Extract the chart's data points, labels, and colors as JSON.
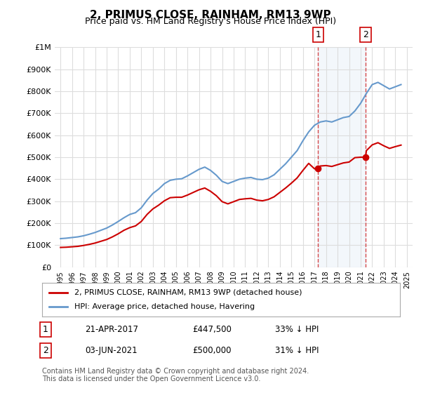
{
  "title": "2, PRIMUS CLOSE, RAINHAM, RM13 9WP",
  "subtitle": "Price paid vs. HM Land Registry's House Price Index (HPI)",
  "ylabel": "",
  "xlabel": "",
  "ylim": [
    0,
    1000000
  ],
  "yticks": [
    0,
    100000,
    200000,
    300000,
    400000,
    500000,
    600000,
    700000,
    800000,
    900000,
    1000000
  ],
  "ytick_labels": [
    "£0",
    "£100K",
    "£200K",
    "£300K",
    "£400K",
    "£500K",
    "£600K",
    "£700K",
    "£800K",
    "£900K",
    "£1M"
  ],
  "hpi_color": "#6699cc",
  "price_color": "#cc0000",
  "marker1_date": 2017.31,
  "marker1_label": "1",
  "marker2_date": 2021.42,
  "marker2_label": "2",
  "marker1_price": 447500,
  "marker2_price": 500000,
  "legend_line1": "2, PRIMUS CLOSE, RAINHAM, RM13 9WP (detached house)",
  "legend_line2": "HPI: Average price, detached house, Havering",
  "table_row1": [
    "1",
    "21-APR-2017",
    "£447,500",
    "33% ↓ HPI"
  ],
  "table_row2": [
    "2",
    "03-JUN-2021",
    "£500,000",
    "31% ↓ HPI"
  ],
  "footer": "Contains HM Land Registry data © Crown copyright and database right 2024.\nThis data is licensed under the Open Government Licence v3.0.",
  "background_color": "#ffffff",
  "grid_color": "#dddddd"
}
